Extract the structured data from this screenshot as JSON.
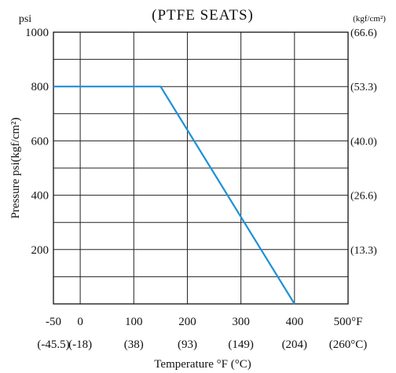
{
  "chart_data": {
    "type": "line",
    "title": "(PTFE  SEATS)",
    "y_unit_left": "psi",
    "y_unit_right": "(kgf/cm²)",
    "ylabel": "Pressure  psi(kgf/cm²)",
    "xlabel": "Temperature °F (°C)",
    "xlim": [
      -50,
      500
    ],
    "ylim": [
      0,
      1000
    ],
    "grid": true,
    "x_ticks": [
      {
        "value": -50,
        "label": "-50",
        "alt": "(-45.5)"
      },
      {
        "value": 0,
        "label": "0",
        "alt": "(-18)"
      },
      {
        "value": 100,
        "label": "100",
        "alt": "(38)"
      },
      {
        "value": 200,
        "label": "200",
        "alt": "(93)"
      },
      {
        "value": 300,
        "label": "300",
        "alt": "(149)"
      },
      {
        "value": 400,
        "label": "400",
        "alt": "(204)"
      },
      {
        "value": 500,
        "label": "500°F",
        "alt": "(260°C)"
      }
    ],
    "y_ticks_left": [
      {
        "value": 1000,
        "label": "1000"
      },
      {
        "value": 800,
        "label": "800"
      },
      {
        "value": 600,
        "label": "600"
      },
      {
        "value": 400,
        "label": "400"
      },
      {
        "value": 200,
        "label": "200"
      }
    ],
    "y_ticks_right": [
      {
        "value": 1000,
        "label": "(66.6)"
      },
      {
        "value": 800,
        "label": "(53.3)"
      },
      {
        "value": 600,
        "label": "(40.0)"
      },
      {
        "value": 400,
        "label": "(26.6)"
      },
      {
        "value": 200,
        "label": "(13.3)"
      }
    ],
    "gridlines_y": [
      100,
      200,
      300,
      400,
      500,
      600,
      700,
      800,
      900,
      1000
    ],
    "gridlines_x": [
      0,
      100,
      200,
      300,
      400,
      500
    ],
    "series": [
      {
        "color": "#1e90d6",
        "x": [
          -50,
          150,
          400
        ],
        "y": [
          800,
          800,
          0
        ]
      }
    ]
  }
}
